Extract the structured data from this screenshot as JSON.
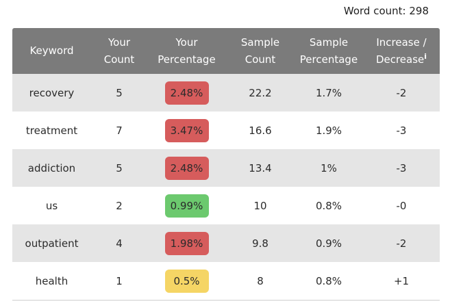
{
  "word_count": "Word count: 298",
  "colors": {
    "header_bg": "#7b7b7b",
    "row_shaded": "#e5e5e5",
    "row_plain": "#ffffff",
    "badge_red": "#d65c5c",
    "badge_green": "#6cc96e",
    "badge_yellow": "#f5d565"
  },
  "table": {
    "headers": {
      "keyword": "Keyword",
      "your_count_1": "Your",
      "your_count_2": "Count",
      "your_pct_1": "Your",
      "your_pct_2": "Percentage",
      "sample_count_1": "Sample",
      "sample_count_2": "Count",
      "sample_pct_1": "Sample",
      "sample_pct_2": "Percentage",
      "change_1": "Increase /",
      "change_2": "Decrease",
      "change_icon": "i"
    },
    "rows": [
      {
        "keyword": "recovery",
        "your_count": "5",
        "your_pct": "2.48%",
        "status": "red",
        "sample_count": "22.2",
        "sample_pct": "1.7%",
        "change": "-2"
      },
      {
        "keyword": "treatment",
        "your_count": "7",
        "your_pct": "3.47%",
        "status": "red",
        "sample_count": "16.6",
        "sample_pct": "1.9%",
        "change": "-3"
      },
      {
        "keyword": "addiction",
        "your_count": "5",
        "your_pct": "2.48%",
        "status": "red",
        "sample_count": "13.4",
        "sample_pct": "1%",
        "change": "-3"
      },
      {
        "keyword": "us",
        "your_count": "2",
        "your_pct": "0.99%",
        "status": "green",
        "sample_count": "10",
        "sample_pct": "0.8%",
        "change": "-0"
      },
      {
        "keyword": "outpatient",
        "your_count": "4",
        "your_pct": "1.98%",
        "status": "red",
        "sample_count": "9.8",
        "sample_pct": "0.9%",
        "change": "-2"
      },
      {
        "keyword": "health",
        "your_count": "1",
        "your_pct": "0.5%",
        "status": "yellow",
        "sample_count": "8",
        "sample_pct": "0.8%",
        "change": "+1"
      }
    ]
  }
}
